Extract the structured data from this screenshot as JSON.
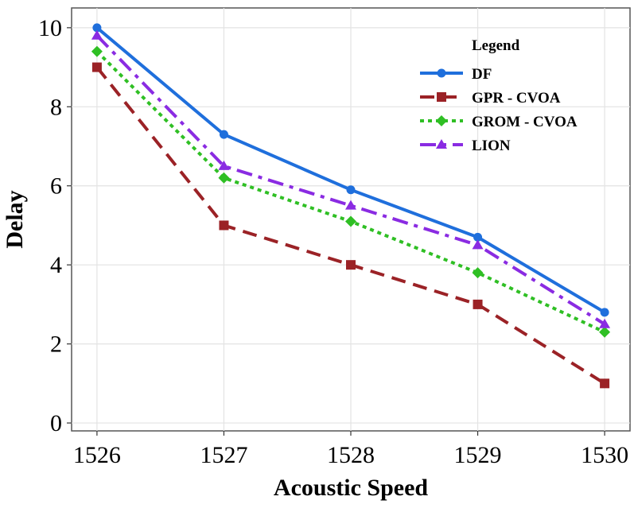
{
  "chart_data": {
    "type": "line",
    "xlabel": "Acoustic Speed",
    "ylabel": "Delay",
    "x": [
      1526,
      1527,
      1528,
      1529,
      1530
    ],
    "xlim": [
      1525.8,
      1530.2
    ],
    "ylim": [
      -0.2,
      10.5
    ],
    "yticks": [
      0,
      2,
      4,
      6,
      8,
      10
    ],
    "grid": true,
    "legend": {
      "title": "Legend",
      "position": "top-right"
    },
    "series": [
      {
        "name": "DF",
        "values": [
          10.0,
          7.3,
          5.9,
          4.7,
          2.8
        ],
        "color": "#1f6fdc",
        "dash": "solid",
        "marker": "circle"
      },
      {
        "name": "GPR - CVOA",
        "values": [
          9.0,
          5.0,
          4.0,
          3.0,
          1.0
        ],
        "color": "#9b2226",
        "dash": "dashed",
        "marker": "square"
      },
      {
        "name": "GROM - CVOA",
        "values": [
          9.4,
          6.2,
          5.1,
          3.8,
          2.3
        ],
        "color": "#2fbf24",
        "dash": "dotted",
        "marker": "diamond"
      },
      {
        "name": "LION",
        "values": [
          9.8,
          6.5,
          5.5,
          4.5,
          2.5
        ],
        "color": "#8a2be2",
        "dash": "dashdot",
        "marker": "triangle"
      }
    ]
  }
}
